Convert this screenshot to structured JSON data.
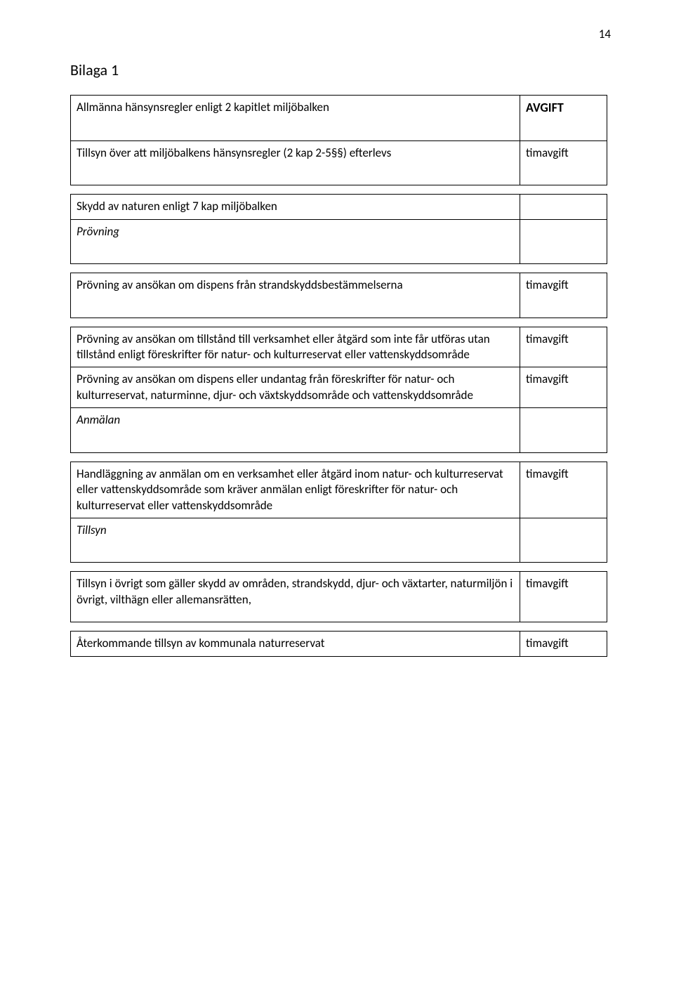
{
  "pageNumber": "14",
  "bilaga": "Bilaga 1",
  "table1": {
    "r1c1": "Allmänna hänsynsregler enligt 2 kapitlet miljöbalken",
    "r1c2": "AVGIFT",
    "r2c1": "Tillsyn över att miljöbalkens hänsynsregler (2 kap 2-5§§) efterlevs",
    "r2c2": "timavgift"
  },
  "table2": {
    "r1c1": "Skydd av naturen enligt 7 kap miljöbalken",
    "r2c1": "Prövning"
  },
  "table3": {
    "r1c1": "Prövning av ansökan om dispens från strandskyddsbestämmelserna",
    "r1c2": "timavgift"
  },
  "table4": {
    "r1c1": "Prövning av ansökan om tillstånd till verksamhet eller åtgärd som inte får utföras utan tillstånd enligt föreskrifter för natur- och kulturreservat eller vattenskyddsområde",
    "r1c2": "timavgift",
    "r2c1": "Prövning av ansökan om dispens eller undantag från föreskrifter för natur- och kulturreservat, naturminne, djur- och växtskyddsområde och vattenskyddsområde",
    "r2c2": "timavgift",
    "r3c1": "Anmälan"
  },
  "table5": {
    "r1c1": "Handläggning av anmälan om en verksamhet eller åtgärd inom natur- och kulturreservat eller vattenskyddsområde som kräver anmälan enligt föreskrifter för natur- och kulturreservat eller vattenskyddsområde",
    "r1c2": "timavgift",
    "r2c1": "Tillsyn"
  },
  "table6": {
    "r1c1": "Tillsyn i övrigt som gäller skydd av områden, strandskydd, djur- och växtarter, naturmiljön i övrigt, vilthägn eller allemansrätten,",
    "r1c2": "timavgift"
  },
  "table7": {
    "r1c1": "Återkommande tillsyn av kommunala naturreservat",
    "r1c2": "timavgift"
  }
}
